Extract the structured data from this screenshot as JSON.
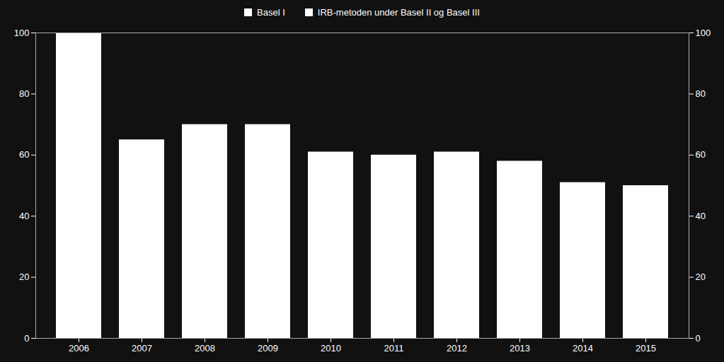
{
  "chart_data": {
    "type": "bar",
    "categories": [
      "2006",
      "2007",
      "2008",
      "2009",
      "2010",
      "2011",
      "2012",
      "2013",
      "2014",
      "2015"
    ],
    "series": [
      {
        "name": "Basel I",
        "color": "#ffffff",
        "values": [
          100,
          null,
          null,
          null,
          null,
          null,
          null,
          null,
          null,
          null
        ]
      },
      {
        "name": "IRB-metoden under Basel II og Basel III",
        "color": "#ffffff",
        "values": [
          null,
          65,
          70,
          70,
          61,
          60,
          61,
          58,
          51,
          50
        ]
      }
    ],
    "ylim": [
      0,
      100
    ],
    "yticks": [
      0,
      20,
      40,
      60,
      80,
      100
    ],
    "grid": false
  }
}
